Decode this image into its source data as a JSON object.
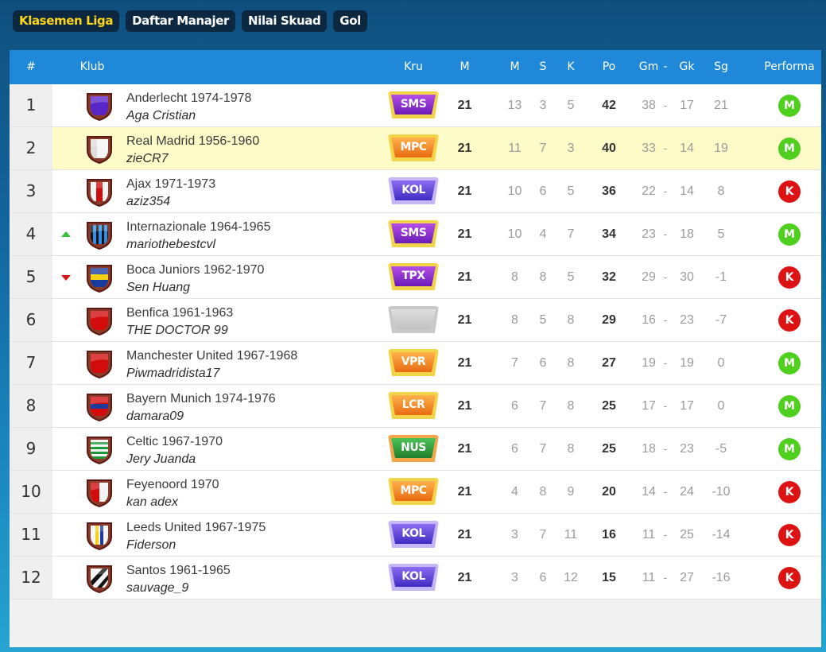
{
  "tabs": [
    {
      "label": "Klasemen Liga",
      "active": true
    },
    {
      "label": "Daftar Manajer",
      "active": false
    },
    {
      "label": "Nilai Skuad",
      "active": false
    },
    {
      "label": "Gol",
      "active": false
    }
  ],
  "headers": {
    "rank": "#",
    "club": "Klub",
    "crew": "Kru",
    "played": "M",
    "won": "M",
    "draw": "S",
    "lost": "K",
    "points": "Po",
    "goals_for": "Gm",
    "sep": "-",
    "goals_against": "Gk",
    "goal_diff": "Sg",
    "form": "Performa"
  },
  "colors": {
    "header_bg": "#1f88d8",
    "highlight_row": "#fdfbc8",
    "win": "#4fcf1e",
    "loss": "#dd1212",
    "active_tab_text": "#ffd51a"
  },
  "rows": [
    {
      "rank": "1",
      "trend": "",
      "club": "Anderlecht 1974-1978",
      "manager": "Aga Cristian",
      "crew": "SMS",
      "crew_style": "purple",
      "played": "21",
      "won": "13",
      "draw": "3",
      "lost": "5",
      "points": "42",
      "gf": "38",
      "ga": "17",
      "gd": "21",
      "form": "M",
      "crest": "anderlecht",
      "highlight": false
    },
    {
      "rank": "2",
      "trend": "",
      "club": "Real Madrid 1956-1960",
      "manager": "zieCR7",
      "crew": "MPC",
      "crew_style": "orange",
      "played": "21",
      "won": "11",
      "draw": "7",
      "lost": "3",
      "points": "40",
      "gf": "33",
      "ga": "14",
      "gd": "19",
      "form": "M",
      "crest": "realmadrid",
      "highlight": true
    },
    {
      "rank": "3",
      "trend": "",
      "club": "Ajax 1971-1973",
      "manager": "aziz354",
      "crew": "KOL",
      "crew_style": "blue",
      "played": "21",
      "won": "10",
      "draw": "6",
      "lost": "5",
      "points": "36",
      "gf": "22",
      "ga": "14",
      "gd": "8",
      "form": "K",
      "crest": "ajax",
      "highlight": false
    },
    {
      "rank": "4",
      "trend": "up",
      "club": "Internazionale 1964-1965",
      "manager": "mariothebestcvl",
      "crew": "SMS",
      "crew_style": "purple",
      "played": "21",
      "won": "10",
      "draw": "4",
      "lost": "7",
      "points": "34",
      "gf": "23",
      "ga": "18",
      "gd": "5",
      "form": "M",
      "crest": "inter",
      "highlight": false
    },
    {
      "rank": "5",
      "trend": "down",
      "club": "Boca Juniors 1962-1970",
      "manager": "Sen Huang",
      "crew": "TPX",
      "crew_style": "purple",
      "played": "21",
      "won": "8",
      "draw": "8",
      "lost": "5",
      "points": "32",
      "gf": "29",
      "ga": "30",
      "gd": "-1",
      "form": "K",
      "crest": "boca",
      "highlight": false
    },
    {
      "rank": "6",
      "trend": "",
      "club": "Benfica 1961-1963",
      "manager": "THE DOCTOR 99",
      "crew": "",
      "crew_style": "grey",
      "played": "21",
      "won": "8",
      "draw": "5",
      "lost": "8",
      "points": "29",
      "gf": "16",
      "ga": "23",
      "gd": "-7",
      "form": "K",
      "crest": "benfica",
      "highlight": false
    },
    {
      "rank": "7",
      "trend": "",
      "club": "Manchester United 1967-1968",
      "manager": "Piwmadridista17",
      "crew": "VPR",
      "crew_style": "orange",
      "played": "21",
      "won": "7",
      "draw": "6",
      "lost": "8",
      "points": "27",
      "gf": "19",
      "ga": "19",
      "gd": "0",
      "form": "M",
      "crest": "manutd",
      "highlight": false
    },
    {
      "rank": "8",
      "trend": "",
      "club": "Bayern Munich 1974-1976",
      "manager": "damara09",
      "crew": "LCR",
      "crew_style": "orange",
      "played": "21",
      "won": "6",
      "draw": "7",
      "lost": "8",
      "points": "25",
      "gf": "17",
      "ga": "17",
      "gd": "0",
      "form": "M",
      "crest": "bayern",
      "highlight": false
    },
    {
      "rank": "9",
      "trend": "",
      "club": "Celtic 1967-1970",
      "manager": "Jery Juanda",
      "crew": "NUS",
      "crew_style": "green",
      "played": "21",
      "won": "6",
      "draw": "7",
      "lost": "8",
      "points": "25",
      "gf": "18",
      "ga": "23",
      "gd": "-5",
      "form": "M",
      "crest": "celtic",
      "highlight": false
    },
    {
      "rank": "10",
      "trend": "",
      "club": "Feyenoord 1970",
      "manager": "kan adex",
      "crew": "MPC",
      "crew_style": "orange",
      "played": "21",
      "won": "4",
      "draw": "8",
      "lost": "9",
      "points": "20",
      "gf": "14",
      "ga": "24",
      "gd": "-10",
      "form": "K",
      "crest": "feyenoord",
      "highlight": false
    },
    {
      "rank": "11",
      "trend": "",
      "club": "Leeds United 1967-1975",
      "manager": "Fiderson",
      "crew": "KOL",
      "crew_style": "blue",
      "played": "21",
      "won": "3",
      "draw": "7",
      "lost": "11",
      "points": "16",
      "gf": "11",
      "ga": "25",
      "gd": "-14",
      "form": "K",
      "crest": "leeds",
      "highlight": false
    },
    {
      "rank": "12",
      "trend": "",
      "club": "Santos 1961-1965",
      "manager": "sauvage_9",
      "crew": "KOL",
      "crew_style": "blue",
      "played": "21",
      "won": "3",
      "draw": "6",
      "lost": "12",
      "points": "15",
      "gf": "11",
      "ga": "27",
      "gd": "-16",
      "form": "K",
      "crest": "santos",
      "highlight": false
    }
  ]
}
